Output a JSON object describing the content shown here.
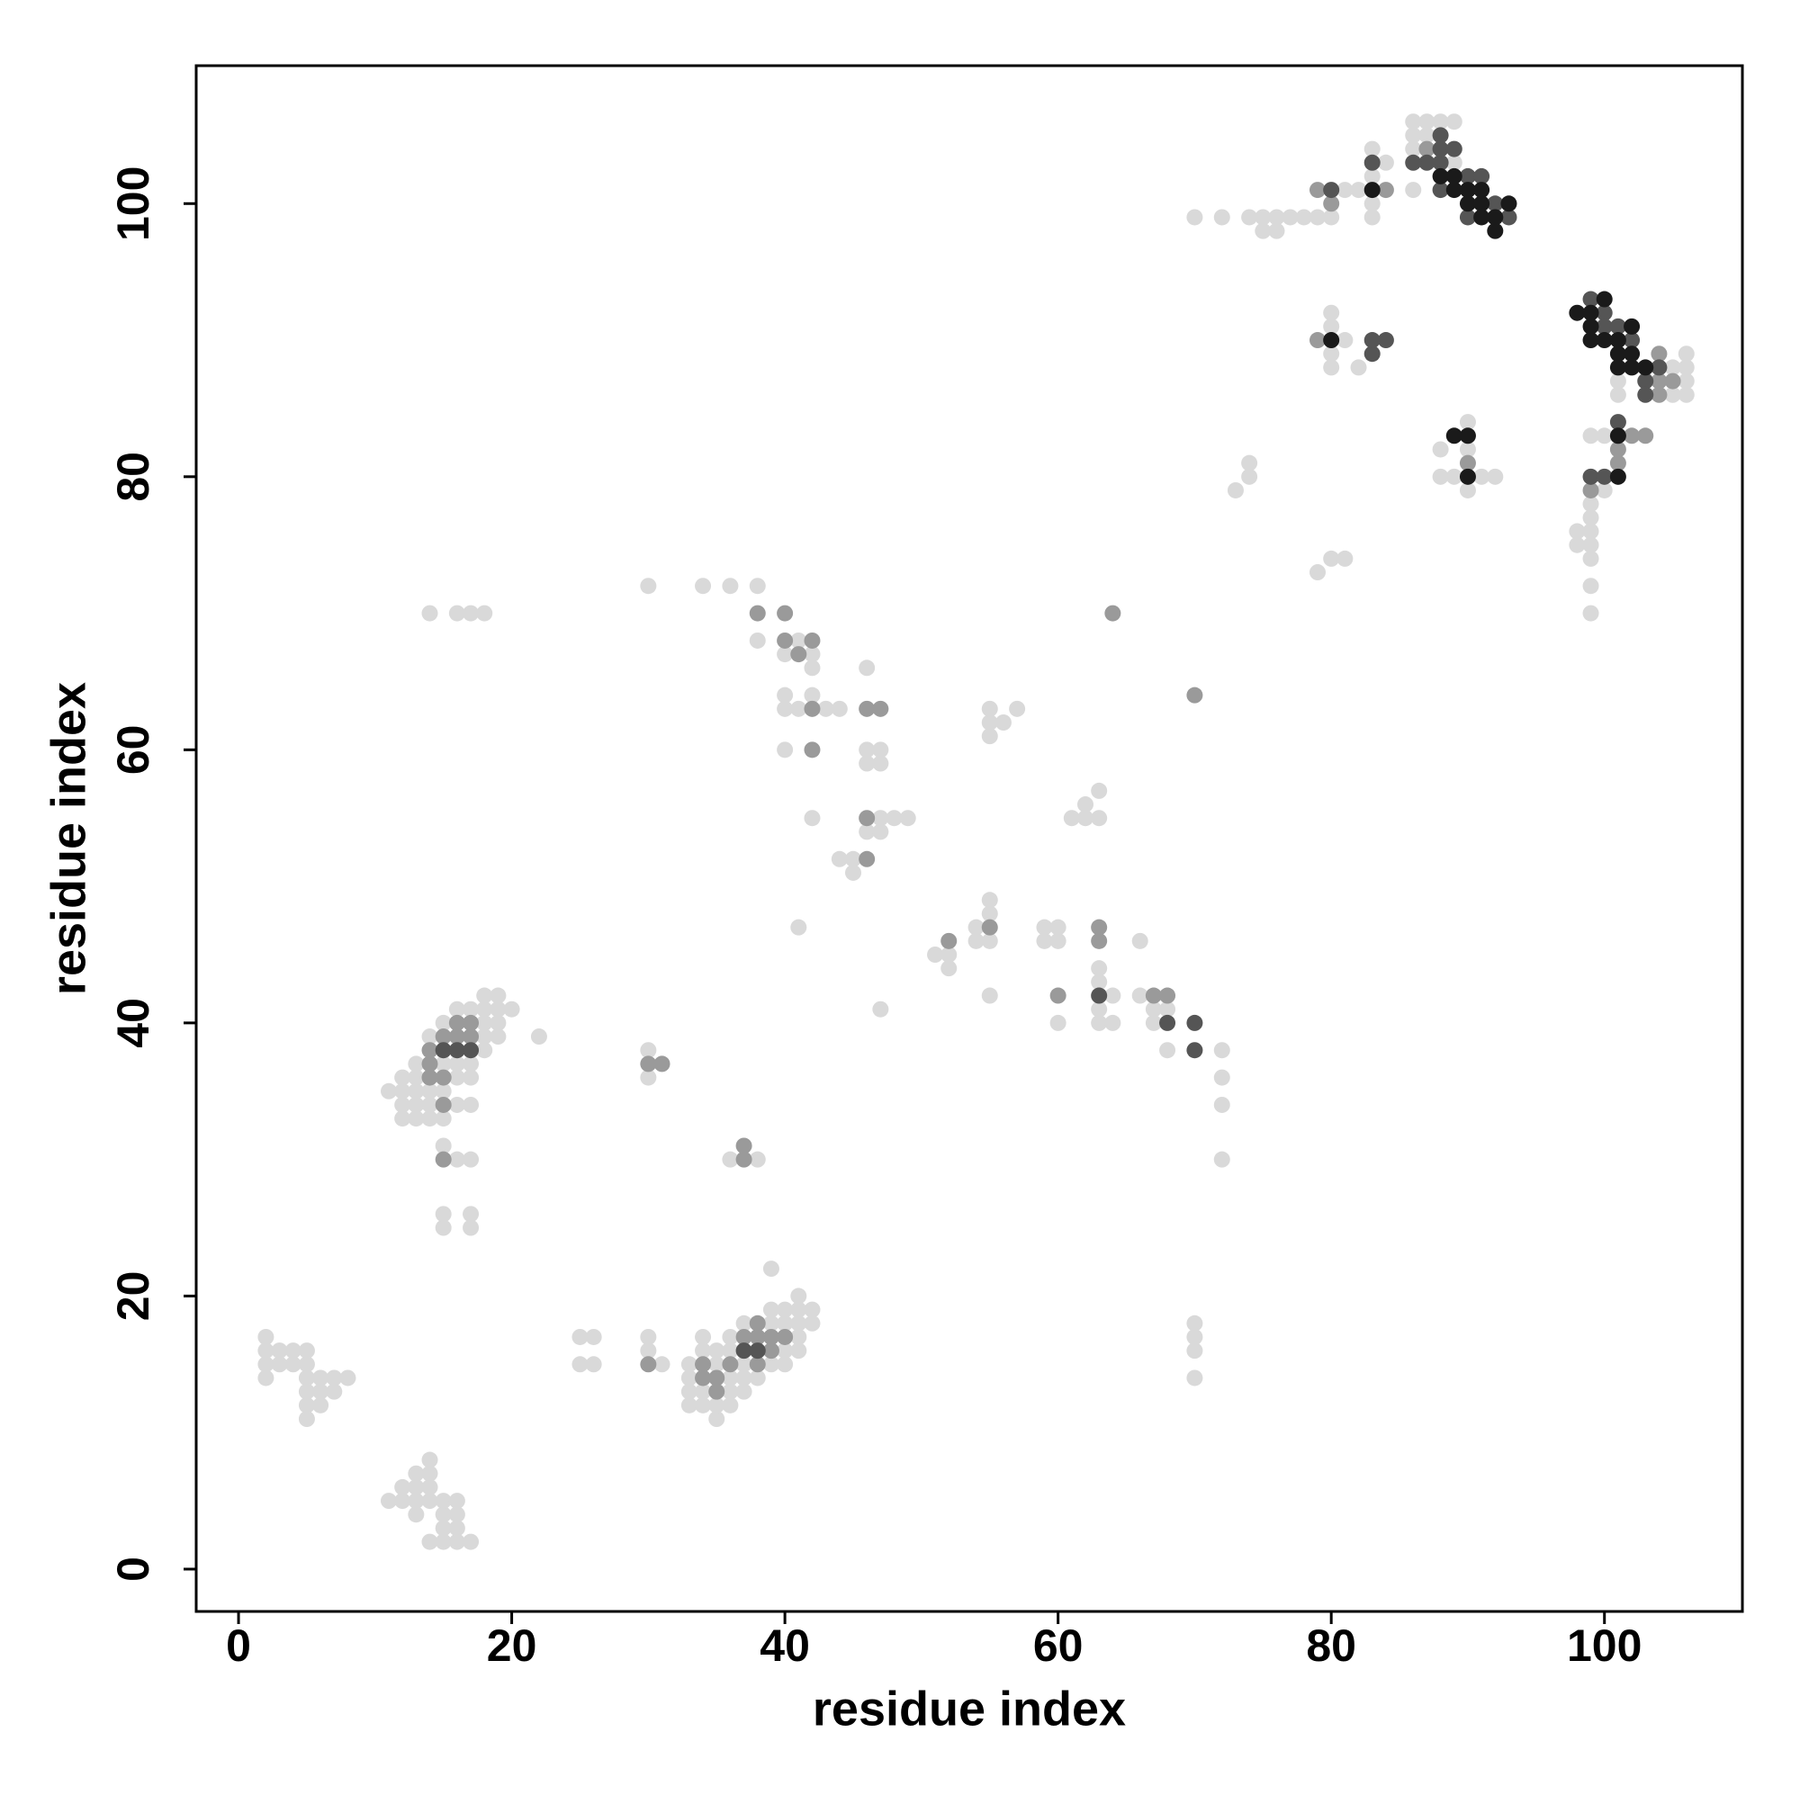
{
  "chart_data": {
    "type": "scatter",
    "x_label": "residue index",
    "y_label": "residue index",
    "xlim": [
      -3.1,
      110.1
    ],
    "ylim": [
      -3.1,
      110.1
    ],
    "xticks": [
      0,
      20,
      40,
      60,
      80,
      100
    ],
    "yticks": [
      0,
      20,
      40,
      60,
      80,
      100
    ],
    "grid": false,
    "series": [
      {
        "color": "#d9d9d9",
        "x": [
          2,
          2,
          2,
          2,
          3,
          3,
          4,
          4,
          5,
          5,
          5,
          5,
          5,
          5,
          6,
          6,
          6,
          7,
          7,
          8,
          11,
          12,
          12,
          13,
          13,
          13,
          13,
          14,
          14,
          14,
          14,
          14,
          15,
          15,
          15,
          15,
          16,
          16,
          16,
          16,
          17,
          11,
          12,
          12,
          12,
          12,
          13,
          13,
          13,
          13,
          13,
          14,
          14,
          14,
          14,
          15,
          15,
          15,
          15,
          15,
          16,
          16,
          16,
          16,
          16,
          17,
          17,
          17,
          17,
          17,
          17,
          17,
          18,
          18,
          18,
          18,
          18,
          19,
          19,
          19,
          19,
          20,
          22,
          15,
          15,
          14,
          16,
          17,
          18,
          25,
          25,
          26,
          26,
          30,
          30,
          30,
          30,
          31,
          30,
          33,
          33,
          33,
          33,
          34,
          34,
          34,
          34,
          35,
          35,
          35,
          35,
          36,
          36,
          36,
          36,
          36,
          37,
          37,
          37,
          37,
          38,
          39,
          39,
          39,
          40,
          40,
          40,
          40,
          41,
          41,
          41,
          41,
          41,
          42,
          42,
          39,
          36,
          38,
          34,
          36,
          38,
          38,
          40,
          41,
          42,
          42,
          40,
          40,
          41,
          42,
          43,
          44,
          40,
          42,
          44,
          45,
          45,
          46,
          47,
          47,
          48,
          49,
          46,
          46,
          47,
          47,
          46,
          41,
          47,
          51,
          52,
          52,
          54,
          54,
          55,
          55,
          55,
          55,
          55,
          55,
          55,
          56,
          57,
          59,
          59,
          60,
          60,
          60,
          61,
          62,
          62,
          63,
          63,
          63,
          63,
          64,
          63,
          63,
          64,
          66,
          66,
          67,
          67,
          68,
          68,
          72,
          72,
          72,
          72,
          70,
          70,
          70,
          70,
          73,
          74,
          74,
          79,
          80,
          81,
          70,
          72,
          74,
          75,
          76,
          77,
          78,
          79,
          75,
          76,
          80,
          81,
          82,
          83,
          83,
          83,
          83,
          84,
          86,
          86,
          86,
          86,
          87,
          87,
          88,
          89,
          89,
          80,
          80,
          80,
          80,
          81,
          82,
          88,
          88,
          89,
          90,
          90,
          90,
          91,
          92,
          101,
          101,
          105,
          105,
          106,
          106,
          106,
          106,
          98,
          98,
          99,
          99,
          99,
          99,
          99,
          99,
          99,
          99,
          100,
          100
        ],
        "y": [
          14,
          15,
          16,
          17,
          15,
          16,
          15,
          16,
          11,
          12,
          13,
          14,
          15,
          16,
          12,
          13,
          14,
          13,
          14,
          14,
          5,
          5,
          6,
          4,
          5,
          6,
          7,
          2,
          5,
          6,
          7,
          8,
          2,
          3,
          4,
          5,
          2,
          3,
          4,
          5,
          2,
          35,
          33,
          34,
          35,
          36,
          33,
          34,
          35,
          36,
          37,
          33,
          34,
          35,
          39,
          31,
          33,
          35,
          37,
          40,
          30,
          34,
          36,
          37,
          41,
          25,
          26,
          30,
          34,
          36,
          37,
          41,
          38,
          39,
          40,
          41,
          42,
          39,
          40,
          41,
          42,
          41,
          39,
          25,
          26,
          70,
          70,
          70,
          70,
          15,
          17,
          15,
          17,
          16,
          17,
          36,
          38,
          15,
          72,
          12,
          13,
          14,
          15,
          12,
          13,
          16,
          17,
          11,
          12,
          15,
          16,
          12,
          13,
          14,
          16,
          17,
          13,
          14,
          15,
          18,
          14,
          15,
          18,
          19,
          15,
          16,
          18,
          19,
          16,
          17,
          18,
          19,
          20,
          18,
          19,
          22,
          30,
          30,
          72,
          72,
          72,
          68,
          67,
          68,
          67,
          66,
          64,
          63,
          63,
          64,
          63,
          63,
          60,
          55,
          52,
          52,
          51,
          54,
          54,
          55,
          55,
          55,
          59,
          60,
          59,
          60,
          66,
          47,
          41,
          45,
          44,
          45,
          46,
          47,
          46,
          48,
          49,
          42,
          61,
          62,
          63,
          62,
          63,
          46,
          47,
          46,
          47,
          40,
          55,
          55,
          56,
          55,
          57,
          44,
          43,
          42,
          41,
          40,
          40,
          46,
          42,
          41,
          40,
          41,
          38,
          38,
          36,
          34,
          30,
          18,
          17,
          16,
          14,
          79,
          80,
          81,
          73,
          74,
          74,
          99,
          99,
          99,
          99,
          99,
          99,
          99,
          99,
          98,
          98,
          99,
          101,
          101,
          102,
          104,
          100,
          99,
          103,
          101,
          104,
          105,
          106,
          105,
          106,
          106,
          103,
          106,
          88,
          89,
          91,
          92,
          90,
          88,
          80,
          82,
          80,
          79,
          82,
          84,
          80,
          80,
          86,
          87,
          86,
          88,
          86,
          87,
          88,
          89,
          75,
          76,
          70,
          72,
          74,
          75,
          76,
          77,
          78,
          83,
          79,
          83
        ]
      },
      {
        "color": "#9a9a9a",
        "x": [
          79,
          79,
          80,
          84,
          87,
          38,
          40,
          40,
          42,
          42,
          46,
          63,
          63,
          60,
          55,
          52,
          64,
          70,
          37,
          37,
          15,
          31,
          30,
          30,
          15,
          14,
          14,
          15,
          16,
          16,
          17,
          17,
          14,
          15,
          38,
          38,
          39,
          37,
          36,
          35,
          35,
          34,
          34,
          38,
          39,
          40,
          67,
          68,
          99,
          101,
          101,
          103,
          104,
          104,
          105,
          104,
          102,
          90,
          47,
          46,
          46,
          41,
          42
        ],
        "y": [
          90,
          101,
          100,
          101,
          104,
          70,
          70,
          68,
          63,
          60,
          52,
          47,
          46,
          42,
          47,
          46,
          70,
          64,
          31,
          30,
          30,
          37,
          37,
          15,
          34,
          36,
          37,
          36,
          39,
          40,
          39,
          40,
          38,
          39,
          17,
          18,
          17,
          17,
          15,
          14,
          13,
          14,
          15,
          15,
          16,
          17,
          42,
          42,
          79,
          82,
          81,
          83,
          87,
          89,
          87,
          86,
          83,
          81,
          63,
          63,
          55,
          67,
          68
        ]
      },
      {
        "color": "#555555",
        "x": [
          80,
          83,
          83,
          84,
          88,
          88,
          89,
          90,
          91,
          92,
          93,
          87,
          99,
          100,
          100,
          101,
          102,
          103,
          104,
          103,
          101,
          99,
          100,
          83,
          86,
          88,
          90,
          37,
          38,
          16,
          17,
          15,
          70,
          70,
          68,
          63,
          88
        ],
        "y": [
          101,
          103,
          89,
          90,
          103,
          104,
          104,
          102,
          102,
          100,
          99,
          103,
          93,
          92,
          91,
          91,
          90,
          87,
          88,
          86,
          84,
          80,
          80,
          90,
          103,
          101,
          99,
          16,
          16,
          38,
          38,
          38,
          38,
          40,
          40,
          42,
          105
        ]
      },
      {
        "color": "#1a1a1a",
        "x": [
          80,
          83,
          88,
          89,
          89,
          90,
          90,
          91,
          91,
          91,
          92,
          92,
          93,
          90,
          90,
          98,
          99,
          99,
          99,
          100,
          100,
          101,
          101,
          101,
          102,
          102,
          102,
          103,
          101,
          101,
          89
        ],
        "y": [
          90,
          101,
          102,
          101,
          102,
          100,
          101,
          99,
          100,
          101,
          98,
          99,
          100,
          83,
          80,
          92,
          90,
          91,
          92,
          90,
          93,
          88,
          89,
          90,
          88,
          89,
          91,
          88,
          83,
          80,
          83
        ]
      }
    ]
  }
}
